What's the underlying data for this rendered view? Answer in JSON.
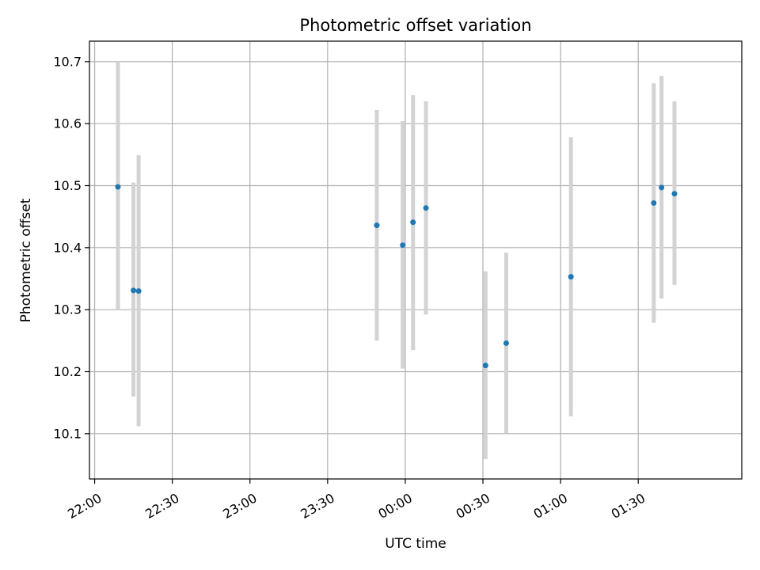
{
  "chart_data": {
    "type": "scatter",
    "title": "Photometric offset variation",
    "xlabel": "UTC time",
    "ylabel": "Photometric offset",
    "x_unit": "time (HH:MM, UTC)",
    "xlim": [
      "21:58",
      "02:10"
    ],
    "ylim": [
      10.027,
      10.733
    ],
    "x_ticks": [
      "22:00",
      "22:30",
      "23:00",
      "23:30",
      "00:00",
      "00:30",
      "01:00",
      "01:30"
    ],
    "y_ticks": [
      "10.1",
      "10.2",
      "10.3",
      "10.4",
      "10.5",
      "10.6",
      "10.7"
    ],
    "grid": true,
    "error_bar_color": "#d3d3d3",
    "marker_color": "#1f77b4",
    "points": [
      {
        "x": "22:09",
        "y": 10.498,
        "err_low": 10.3,
        "err_high": 10.7
      },
      {
        "x": "22:15",
        "y": 10.331,
        "err_low": 10.16,
        "err_high": 10.505
      },
      {
        "x": "22:17",
        "y": 10.33,
        "err_low": 10.112,
        "err_high": 10.549
      },
      {
        "x": "23:49",
        "y": 10.436,
        "err_low": 10.25,
        "err_high": 10.622
      },
      {
        "x": "23:59",
        "y": 10.404,
        "err_low": 10.205,
        "err_high": 10.604
      },
      {
        "x": "00:03",
        "y": 10.441,
        "err_low": 10.235,
        "err_high": 10.646
      },
      {
        "x": "00:08",
        "y": 10.464,
        "err_low": 10.292,
        "err_high": 10.636
      },
      {
        "x": "00:31",
        "y": 10.21,
        "err_low": 10.059,
        "err_high": 10.362
      },
      {
        "x": "00:39",
        "y": 10.246,
        "err_low": 10.101,
        "err_high": 10.392
      },
      {
        "x": "01:04",
        "y": 10.353,
        "err_low": 10.128,
        "err_high": 10.578
      },
      {
        "x": "01:36",
        "y": 10.472,
        "err_low": 10.279,
        "err_high": 10.665
      },
      {
        "x": "01:39",
        "y": 10.497,
        "err_low": 10.318,
        "err_high": 10.677
      },
      {
        "x": "01:44",
        "y": 10.487,
        "err_low": 10.34,
        "err_high": 10.636
      }
    ]
  }
}
